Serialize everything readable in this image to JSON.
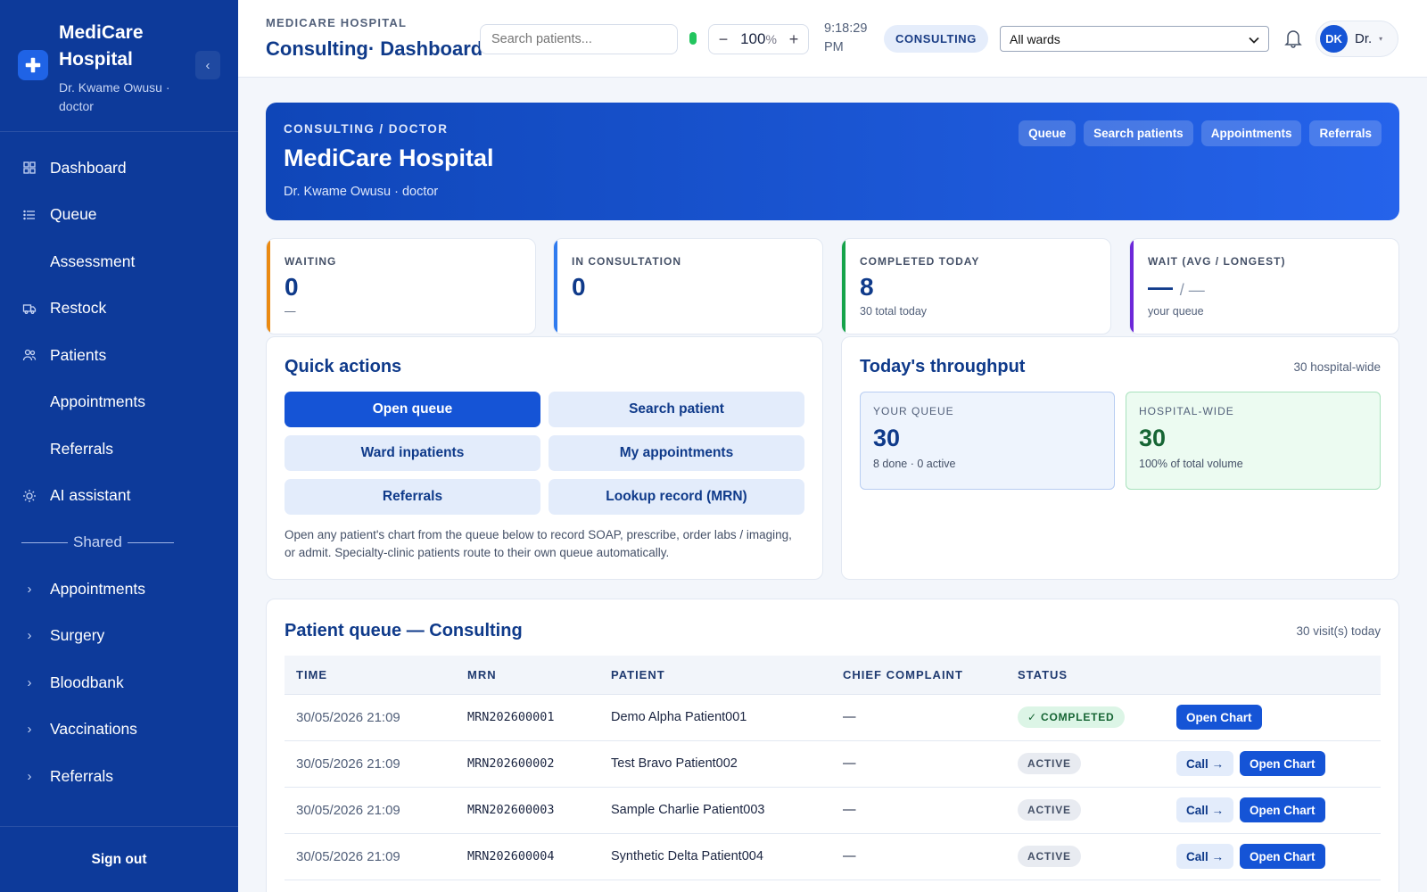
{
  "sidebar": {
    "brand_name": "MediCare Hospital",
    "brand_sub": "Dr. Kwame Owusu · doctor",
    "collapse_glyph": "‹",
    "items": [
      {
        "label": "Dashboard",
        "icon": "dashboard-icon"
      },
      {
        "label": "Queue",
        "icon": "list-icon"
      },
      {
        "label": "Assessment",
        "icon": ""
      },
      {
        "label": "Restock",
        "icon": "truck-icon"
      },
      {
        "label": "Patients",
        "icon": "users-icon"
      },
      {
        "label": "Appointments",
        "icon": ""
      },
      {
        "label": "Referrals",
        "icon": ""
      },
      {
        "label": "AI assistant",
        "icon": "sun-icon"
      }
    ],
    "shared_label": "Shared",
    "shared_items": [
      {
        "label": "Appointments"
      },
      {
        "label": "Surgery"
      },
      {
        "label": "Bloodbank"
      },
      {
        "label": "Vaccinations"
      },
      {
        "label": "Referrals"
      }
    ],
    "chevron": "›",
    "sign_out": "Sign out"
  },
  "topbar": {
    "crumb": "MEDICARE HOSPITAL",
    "title": "Consulting· Dashboard",
    "search_placeholder": "Search patients...",
    "zoom_minus": "−",
    "zoom_value": "100",
    "zoom_unit": "%",
    "zoom_plus": "+",
    "clock_time": "9:18:29",
    "clock_period": "PM",
    "mode_badge": "CONSULTING",
    "ward_select": "All wards",
    "user_initials": "DK",
    "user_name": "Dr.",
    "caret": "▾"
  },
  "hero": {
    "crumb": "CONSULTING / DOCTOR",
    "title": "MediCare Hospital",
    "sub": "Dr. Kwame Owusu · doctor",
    "actions": [
      "Queue",
      "Search patients",
      "Appointments",
      "Referrals"
    ]
  },
  "stats": [
    {
      "label": "WAITING",
      "value": "0",
      "sub": "—",
      "accent": "#ea8a12"
    },
    {
      "label": "IN CONSULTATION",
      "value": "0",
      "sub": "",
      "accent": "#2f7bef"
    },
    {
      "label": "COMPLETED TODAY",
      "value": "8",
      "sub": "30 total today",
      "accent": "#16a34a"
    },
    {
      "label": "WAIT (AVG / LONGEST)",
      "value": "—",
      "value_secondary": "/ —",
      "sub": "your queue",
      "accent": "#6d28d9"
    }
  ],
  "quick_actions": {
    "title": "Quick actions",
    "buttons": [
      "Open queue",
      "Search patient",
      "Ward inpatients",
      "My appointments",
      "Referrals",
      "Lookup record (MRN)"
    ],
    "note": "Open any patient's chart from the queue below to record SOAP, prescribe, order labs / imaging, or admit. Specialty-clinic patients route to their own queue automatically."
  },
  "throughput": {
    "title": "Today's throughput",
    "meta": "30 hospital-wide",
    "queue_label": "YOUR QUEUE",
    "queue_value": "30",
    "queue_sub": "8 done · 0 active",
    "hospital_label": "HOSPITAL-WIDE",
    "hospital_value": "30",
    "hospital_sub": "100% of total volume"
  },
  "queue": {
    "title": "Patient queue — Consulting",
    "meta": "30 visit(s) today",
    "columns": [
      "TIME",
      "MRN",
      "PATIENT",
      "CHIEF COMPLAINT",
      "STATUS",
      ""
    ],
    "rows": [
      {
        "time": "30/05/2026 21:09",
        "mrn": "MRN202600001",
        "patient": "Demo Alpha Patient001",
        "complaint": "—",
        "status": "✓ COMPLETED",
        "call": "",
        "open": "Open Chart"
      },
      {
        "time": "30/05/2026 21:09",
        "mrn": "MRN202600002",
        "patient": "Test Bravo Patient002",
        "complaint": "—",
        "status": "ACTIVE",
        "call": "Call →",
        "open": "Open Chart"
      },
      {
        "time": "30/05/2026 21:09",
        "mrn": "MRN202600003",
        "patient": "Sample Charlie Patient003",
        "complaint": "—",
        "status": "ACTIVE",
        "call": "Call →",
        "open": "Open Chart"
      },
      {
        "time": "30/05/2026 21:09",
        "mrn": "MRN202600004",
        "patient": "Synthetic Delta Patient004",
        "complaint": "—",
        "status": "ACTIVE",
        "call": "Call →",
        "open": "Open Chart"
      }
    ]
  },
  "colors": {
    "sidebar": "#0d3a9a",
    "primary": "#1554d6",
    "accent_light": "#e3ecfb"
  }
}
